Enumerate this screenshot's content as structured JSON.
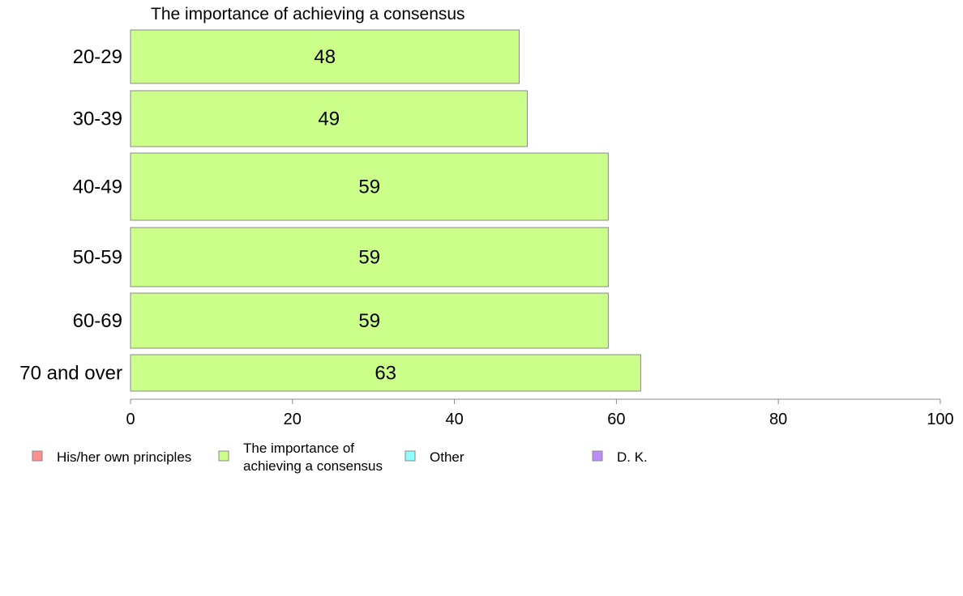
{
  "chart_data": {
    "type": "bar",
    "orientation": "horizontal",
    "title": "The importance of achieving a consensus",
    "xlabel": "",
    "ylabel": "",
    "categories": [
      "20-29",
      "30-39",
      "40-49",
      "50-59",
      "60-69",
      "70 and over"
    ],
    "series": [
      {
        "name": "The importance of achieving a consensus",
        "values": [
          48,
          49,
          59,
          59,
          59,
          63
        ]
      }
    ],
    "xlim": [
      0,
      100
    ],
    "xticks": [
      0,
      20,
      40,
      60,
      80,
      100
    ],
    "grid": false,
    "legend": {
      "placement": "bottom",
      "items": [
        {
          "name": "His/her own principles",
          "color": "#ff8f8f"
        },
        {
          "name": "The importance of achieving a consensus",
          "lines": [
            "The importance of",
            "achieving a consensus"
          ],
          "color": "#ccff8a"
        },
        {
          "name": "Other",
          "color": "#8ffcff"
        },
        {
          "name": "D. K.",
          "color": "#bb8cf5"
        }
      ]
    },
    "colors": {
      "bar": "#ccff8a",
      "bar_stroke": "#8a8a8a",
      "axis": "#888888"
    }
  }
}
